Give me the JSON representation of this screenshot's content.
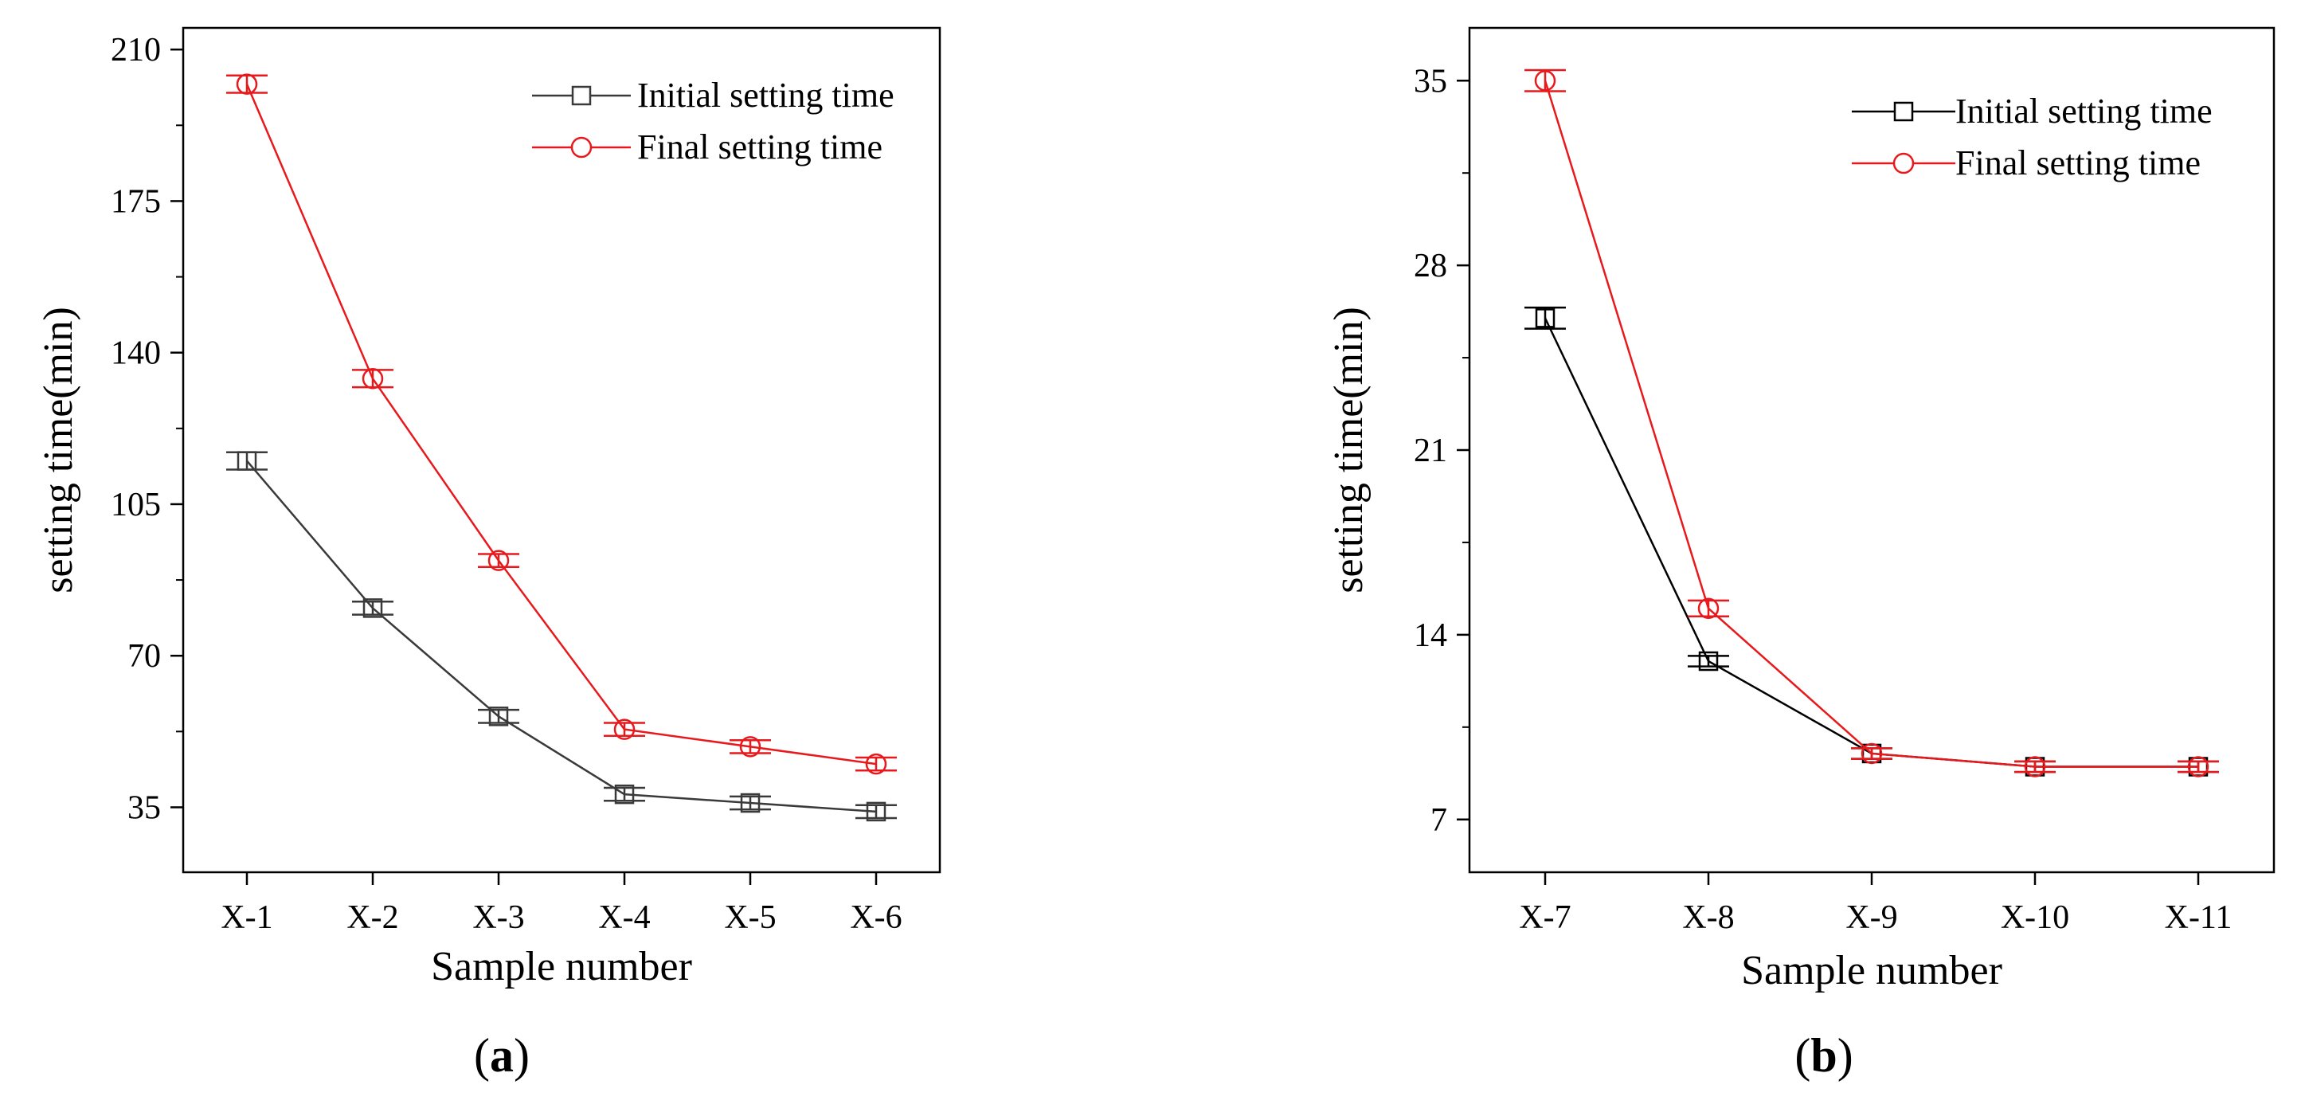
{
  "colors": {
    "initial": "#3a3a3a",
    "initial_b": "#000000",
    "final": "#e8191c",
    "axis": "#000000"
  },
  "chart_data": [
    {
      "panel_label": "(a)",
      "type": "line",
      "xlabel": "Sample number",
      "ylabel": "setting time(min)",
      "categories": [
        "X-1",
        "X-2",
        "X-3",
        "X-4",
        "X-5",
        "X-6"
      ],
      "ylim": [
        20,
        215
      ],
      "yticks": [
        35,
        70,
        105,
        140,
        175,
        210
      ],
      "ytick_labels": [
        "35",
        "70",
        "105",
        "140",
        "175",
        "210"
      ],
      "legend_position": "top-right",
      "series": [
        {
          "name": "Initial setting time",
          "marker": "square",
          "color_key": "initial",
          "values": [
            115,
            81,
            56,
            38,
            36,
            34
          ],
          "error": [
            2,
            1.5,
            1.5,
            1.5,
            1.5,
            1.5
          ]
        },
        {
          "name": "Final setting time",
          "marker": "circle",
          "color_key": "final",
          "values": [
            202,
            134,
            92,
            53,
            49,
            45
          ],
          "error": [
            2,
            2,
            1.5,
            1.5,
            1.5,
            1.5
          ]
        }
      ]
    },
    {
      "panel_label": "(b)",
      "type": "line",
      "xlabel": "Sample number",
      "ylabel": "setting time(min)",
      "categories": [
        "X-7",
        "X-8",
        "X-9",
        "X-10",
        "X-11"
      ],
      "ylim": [
        5,
        37
      ],
      "yticks": [
        7,
        14,
        21,
        28,
        35
      ],
      "ytick_labels": [
        "7",
        "14",
        "21",
        "28",
        "35"
      ],
      "legend_position": "top-right",
      "series": [
        {
          "name": "Initial setting time",
          "marker": "square",
          "color_key": "initial_b",
          "values": [
            26,
            13,
            9.5,
            9,
            9
          ],
          "error": [
            0.4,
            0.2,
            0.2,
            0.2,
            0.2
          ]
        },
        {
          "name": "Final setting time",
          "marker": "circle",
          "color_key": "final",
          "values": [
            35,
            15,
            9.5,
            9,
            9
          ],
          "error": [
            0.4,
            0.3,
            0.2,
            0.2,
            0.2
          ]
        }
      ]
    }
  ]
}
